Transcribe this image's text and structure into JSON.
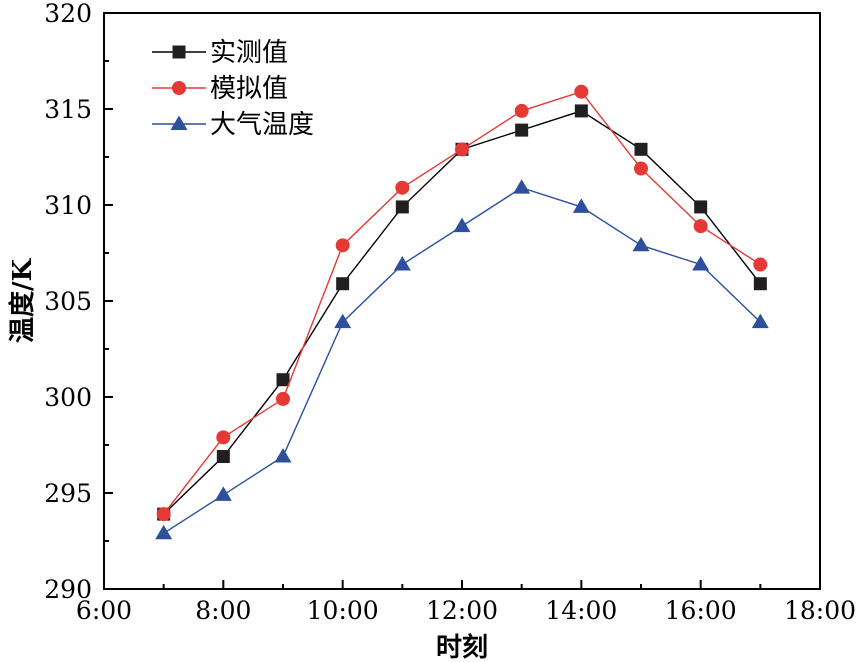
{
  "chart_data": {
    "type": "line",
    "title": "",
    "xlabel": "时刻",
    "ylabel": "温度/K",
    "xlim": [
      6,
      18
    ],
    "ylim": [
      290,
      320
    ],
    "x_ticks": [
      6,
      8,
      10,
      12,
      14,
      16,
      18
    ],
    "x_tick_labels": [
      "6:00",
      "8:00",
      "10:00",
      "12:00",
      "14:00",
      "16:00",
      "18:00"
    ],
    "y_ticks": [
      290,
      295,
      300,
      305,
      310,
      315,
      320
    ],
    "y_tick_labels": [
      "290",
      "295",
      "300",
      "305",
      "310",
      "315",
      "320"
    ],
    "grid": false,
    "legend_position": "top-left",
    "x": [
      7,
      8,
      9,
      10,
      11,
      12,
      13,
      14,
      15,
      16,
      17
    ],
    "series": [
      {
        "name": "实测值",
        "marker": "square",
        "line_color": "#000000",
        "marker_color": "#231f20",
        "values": [
          293.9,
          296.9,
          300.9,
          305.9,
          309.9,
          312.9,
          313.9,
          314.9,
          312.9,
          309.9,
          305.9
        ]
      },
      {
        "name": "模拟值",
        "marker": "circle",
        "line_color": "#e53935",
        "marker_color": "#e53935",
        "values": [
          293.9,
          297.9,
          299.9,
          307.9,
          310.9,
          312.9,
          314.9,
          315.9,
          311.9,
          308.9,
          306.9
        ]
      },
      {
        "name": "大气温度",
        "marker": "triangle",
        "line_color": "#2a4ea0",
        "marker_color": "#2e4f9e",
        "values": [
          292.9,
          294.9,
          296.9,
          303.9,
          306.9,
          308.9,
          310.9,
          309.9,
          307.9,
          306.9,
          303.9
        ]
      }
    ]
  }
}
